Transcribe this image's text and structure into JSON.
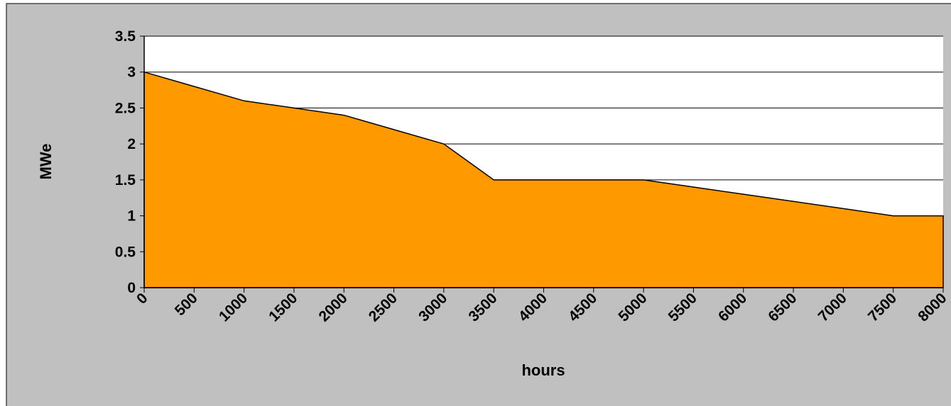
{
  "chart_data": {
    "type": "area",
    "x": [
      0,
      500,
      1000,
      1500,
      2000,
      2500,
      3000,
      3500,
      4000,
      4500,
      5000,
      5500,
      6000,
      6500,
      7000,
      7500,
      8000
    ],
    "values": [
      3,
      2.8,
      2.6,
      2.5,
      2.4,
      2.2,
      2.0,
      1.5,
      1.5,
      1.5,
      1.5,
      1.4,
      1.3,
      1.2,
      1.1,
      1.0,
      1.0
    ],
    "color": "#ff9900",
    "xlabel": "hours",
    "ylabel": "MWe",
    "xlim": [
      0,
      8000
    ],
    "xticks": [
      0,
      500,
      1000,
      1500,
      2000,
      2500,
      3000,
      3500,
      4000,
      4500,
      5000,
      5500,
      6000,
      6500,
      7000,
      7500,
      8000
    ],
    "ylim": [
      0,
      3.5
    ],
    "yticks": [
      0,
      0.5,
      1,
      1.5,
      2,
      2.5,
      3,
      3.5
    ],
    "grid": true
  }
}
